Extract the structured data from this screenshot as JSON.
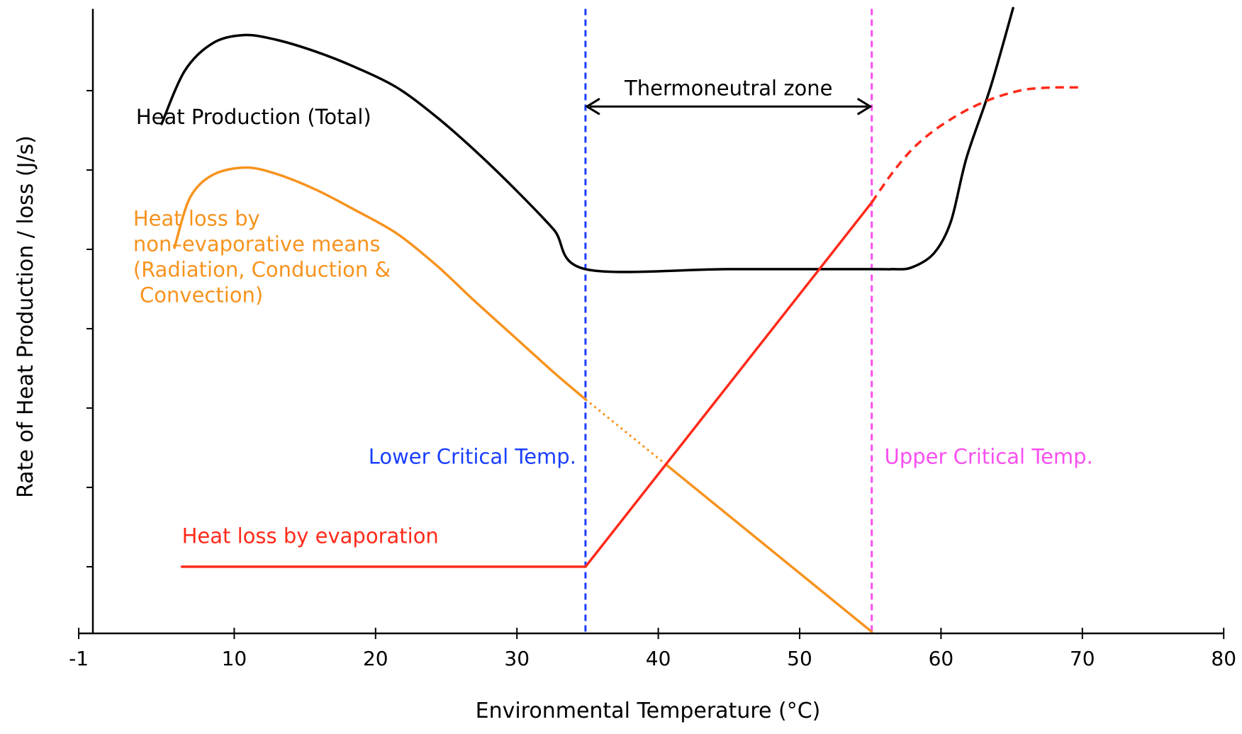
{
  "chart_data": {
    "type": "line",
    "title": "",
    "xlabel": "Environmental Temperature (°C)",
    "ylabel": "Rate of Heat Production / loss (J/s)",
    "xlim": [
      -1,
      80
    ],
    "ylim": [
      0.16,
      8.03
    ],
    "x_ticks": [
      -1,
      10,
      20,
      30,
      40,
      50,
      60,
      70,
      80
    ],
    "x_tick_labels": [
      "-1",
      "10",
      "20",
      "30",
      "40",
      "50",
      "60",
      "70",
      "80"
    ],
    "y_ticks": [
      1,
      2,
      3,
      4,
      5,
      6,
      7
    ],
    "y_tick_labels": [],
    "grid": false,
    "legend": "none",
    "colors": {
      "heat_production": "#000000",
      "non_evaporative": "#F7931E",
      "evaporation": "#FF2A1A",
      "lower_critical": "#1A3FFF",
      "upper_critical": "#F94FF0"
    },
    "series": [
      {
        "name": "Heat Production (Total)",
        "color": "#000000",
        "style": "solid",
        "points": [
          [
            4.86,
            6.58
          ],
          [
            6.5,
            7.25
          ],
          [
            8.5,
            7.6
          ],
          [
            10.7,
            7.7
          ],
          [
            13.0,
            7.64
          ],
          [
            15.8,
            7.49
          ],
          [
            18.5,
            7.3
          ],
          [
            21.5,
            7.04
          ],
          [
            24.3,
            6.67
          ],
          [
            27.0,
            6.25
          ],
          [
            29.8,
            5.77
          ],
          [
            32.6,
            5.25
          ],
          [
            34.85,
            4.75
          ],
          [
            45.0,
            4.75
          ],
          [
            55.1,
            4.75
          ],
          [
            56.5,
            4.75
          ],
          [
            57.9,
            4.77
          ],
          [
            59.5,
            4.95
          ],
          [
            60.7,
            5.35
          ],
          [
            61.8,
            6.15
          ],
          [
            63.5,
            7.04
          ],
          [
            65.1,
            8.04
          ]
        ]
      },
      {
        "name": "Heat loss by non-evaporative means (Radiation, Conduction & Convection)",
        "color": "#F7931E",
        "style": "solid",
        "points": [
          [
            5.77,
            5.02
          ],
          [
            6.87,
            5.65
          ],
          [
            8.5,
            5.94
          ],
          [
            10.8,
            6.03
          ],
          [
            13.0,
            5.95
          ],
          [
            15.8,
            5.75
          ],
          [
            18.5,
            5.5
          ],
          [
            21.5,
            5.2
          ],
          [
            24.3,
            4.8
          ],
          [
            27.0,
            4.35
          ],
          [
            29.8,
            3.9
          ],
          [
            32.6,
            3.45
          ],
          [
            34.85,
            3.11
          ]
        ]
      },
      {
        "name": "Heat loss by non-evaporative means (extrapolated)",
        "color": "#F7931E",
        "style": "dotted",
        "points": [
          [
            34.85,
            3.11
          ],
          [
            40.6,
            2.28
          ]
        ]
      },
      {
        "name": "Heat loss by non-evaporative means (above crossing)",
        "color": "#F7931E",
        "style": "solid",
        "points": [
          [
            40.6,
            2.28
          ],
          [
            55.1,
            0.18
          ]
        ]
      },
      {
        "name": "Heat loss by evaporation",
        "color": "#FF2A1A",
        "style": "solid",
        "points": [
          [
            6.3,
            1.0
          ],
          [
            34.85,
            1.0
          ],
          [
            55.1,
            5.59
          ]
        ]
      },
      {
        "name": "Heat loss by evaporation (above upper critical)",
        "color": "#FF2A1A",
        "style": "dashed",
        "points": [
          [
            55.1,
            5.59
          ],
          [
            56.5,
            5.95
          ],
          [
            57.9,
            6.25
          ],
          [
            59.3,
            6.47
          ],
          [
            60.7,
            6.64
          ],
          [
            62.1,
            6.78
          ],
          [
            63.5,
            6.89
          ],
          [
            64.9,
            6.97
          ],
          [
            66.2,
            7.02
          ],
          [
            68.0,
            7.04
          ],
          [
            69.8,
            7.04
          ]
        ]
      }
    ],
    "reference_lines": [
      {
        "name": "Lower Critical Temp.",
        "x": 34.85,
        "color": "#1A3FFF",
        "style": "dashed"
      },
      {
        "name": "Upper Critical Temp.",
        "x": 55.1,
        "color": "#F94FF0",
        "style": "dashed"
      }
    ],
    "annotations": {
      "heat_production": {
        "lines": [
          "Heat Production (Total)"
        ],
        "x": 3.05,
        "y": 6.58,
        "color": "#000000"
      },
      "non_evaporative": {
        "lines": [
          "Heat loss by",
          "non–evaporative means",
          "(Radiation, Conduction &",
          " Convection)"
        ],
        "x": 2.85,
        "y": 5.3,
        "color": "#F7931E"
      },
      "evaporation": {
        "lines": [
          "Heat loss by evaporation"
        ],
        "x": 6.3,
        "y": 1.3,
        "color": "#FF2A1A"
      },
      "lower_critical": {
        "lines": [
          "Lower Critical Temp."
        ],
        "x": 34.2,
        "y": 2.3,
        "color": "#1A3FFF",
        "anchor": "end"
      },
      "upper_critical": {
        "lines": [
          "Upper Critical Temp."
        ],
        "x": 56.0,
        "y": 2.3,
        "color": "#F94FF0",
        "anchor": "start"
      },
      "thermoneutral": {
        "label": "Thermoneutral zone",
        "x_from": 34.85,
        "x_to": 55.1,
        "y": 6.8,
        "color": "#000000"
      }
    }
  }
}
